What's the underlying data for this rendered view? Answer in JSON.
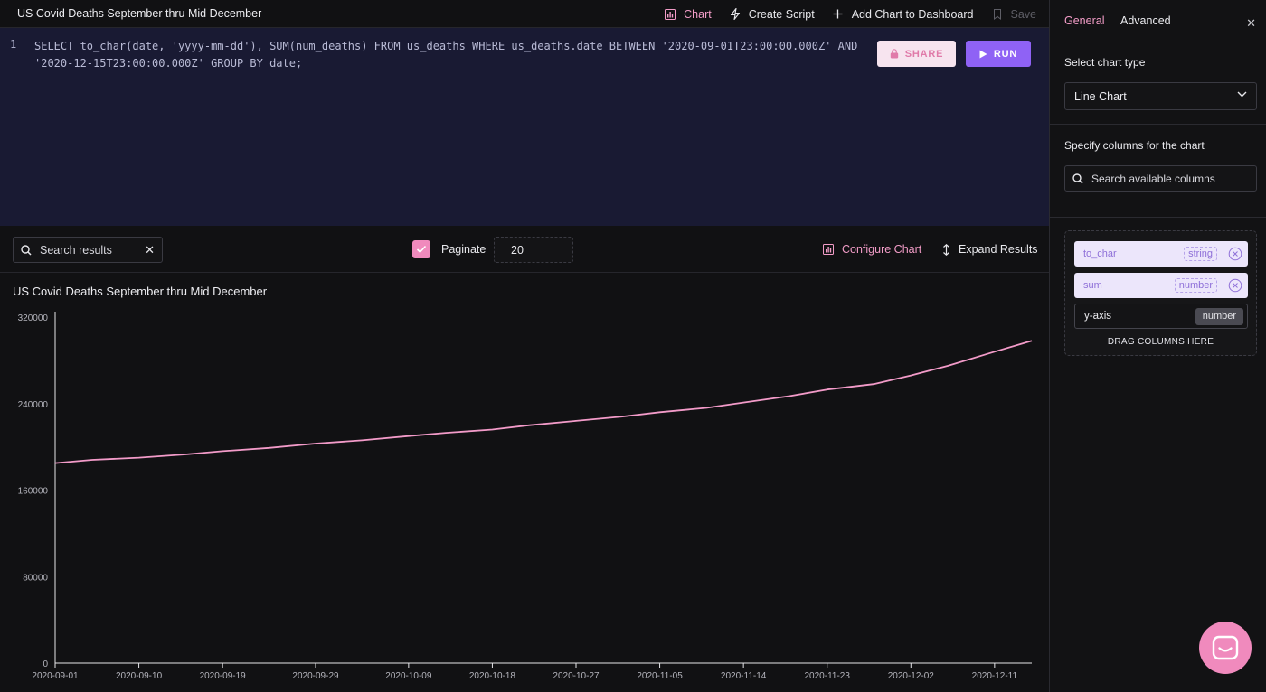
{
  "query": {
    "title": "US Covid Deaths September thru Mid December",
    "line_number": "1",
    "sql": "SELECT to_char(date, 'yyyy-mm-dd'), SUM(num_deaths) FROM us_deaths WHERE us_deaths.date BETWEEN '2020-09-01T23:00:00.000Z' AND '2020-12-15T23:00:00.000Z' GROUP BY date;"
  },
  "toolbar": {
    "chart_label": "Chart",
    "create_script_label": "Create Script",
    "add_chart_label": "Add Chart to Dashboard",
    "save_label": "Save"
  },
  "editor_actions": {
    "share_label": "SHARE",
    "run_label": "RUN"
  },
  "results": {
    "search_placeholder": "Search results",
    "paginate_label": "Paginate",
    "paginate_checked": true,
    "page_size": "20",
    "configure_chart_label": "Configure Chart",
    "expand_results_label": "Expand Results"
  },
  "colors": {
    "accent_pink": "#f08abd",
    "run_purple": "#8f62f5",
    "editor_bg": "#191a33",
    "line": "#f39bc9"
  },
  "chart_data": {
    "type": "line",
    "title": "US Covid Deaths September thru Mid December",
    "xlabel": "",
    "ylabel": "",
    "ylim": [
      0,
      320000
    ],
    "y_ticks": [
      0,
      80000,
      160000,
      240000,
      320000
    ],
    "x_tick_labels": [
      "2020-09-01",
      "2020-09-10",
      "2020-09-19",
      "2020-09-29",
      "2020-10-09",
      "2020-10-18",
      "2020-10-27",
      "2020-11-05",
      "2020-11-14",
      "2020-11-23",
      "2020-12-02",
      "2020-12-11"
    ],
    "grid": false,
    "series": [
      {
        "x": [
          "2020-09-01",
          "2020-09-05",
          "2020-09-10",
          "2020-09-15",
          "2020-09-19",
          "2020-09-24",
          "2020-09-29",
          "2020-10-04",
          "2020-10-09",
          "2020-10-13",
          "2020-10-18",
          "2020-10-22",
          "2020-10-27",
          "2020-11-01",
          "2020-11-05",
          "2020-11-10",
          "2020-11-14",
          "2020-11-19",
          "2020-11-23",
          "2020-11-28",
          "2020-12-02",
          "2020-12-06",
          "2020-12-11",
          "2020-12-15"
        ],
        "values": [
          185000,
          188000,
          190000,
          193000,
          196000,
          199000,
          203000,
          206000,
          210000,
          213000,
          216000,
          220000,
          224000,
          228000,
          232000,
          236000,
          241000,
          247000,
          253000,
          258000,
          266000,
          275000,
          288000,
          298000
        ]
      }
    ]
  },
  "panel": {
    "tab_general": "General",
    "tab_advanced": "Advanced",
    "chart_type_label": "Select chart type",
    "chart_type_value": "Line Chart",
    "columns_label": "Specify columns for the chart",
    "column_search_placeholder": "Search available columns",
    "columns": [
      {
        "name": "to_char",
        "type": "string"
      },
      {
        "name": "sum",
        "type": "number"
      }
    ],
    "yaxis_label": "y-axis",
    "yaxis_type": "number",
    "drop_hint": "DRAG COLUMNS HERE"
  }
}
